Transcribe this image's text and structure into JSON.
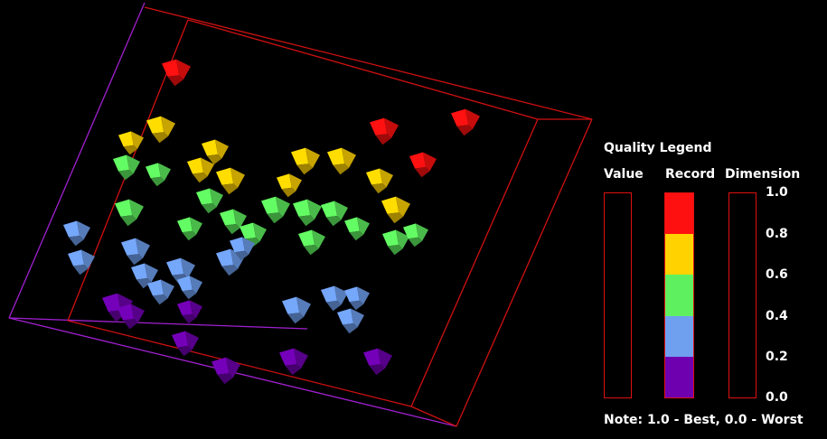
{
  "legend": {
    "title": "Quality Legend",
    "headers": {
      "value": "Value",
      "record": "Record",
      "dimension": "Dimension"
    },
    "ticks": [
      "1.0",
      "0.8",
      "0.6",
      "0.4",
      "0.2",
      "0.0"
    ],
    "note": "Note: 1.0 - Best, 0.0 - Worst",
    "record_bands": [
      {
        "range": [
          0.8,
          1.0
        ],
        "color": "#ff1010"
      },
      {
        "range": [
          0.6,
          0.8
        ],
        "color": "#ffd200"
      },
      {
        "range": [
          0.4,
          0.6
        ],
        "color": "#5ff05f"
      },
      {
        "range": [
          0.2,
          0.4
        ],
        "color": "#6f9fef"
      },
      {
        "range": [
          0.0,
          0.2
        ],
        "color": "#6f00b0"
      }
    ]
  },
  "colors": {
    "box_edge": "#d01010",
    "axis_edge": "#a020d0",
    "background": "#000000"
  }
}
